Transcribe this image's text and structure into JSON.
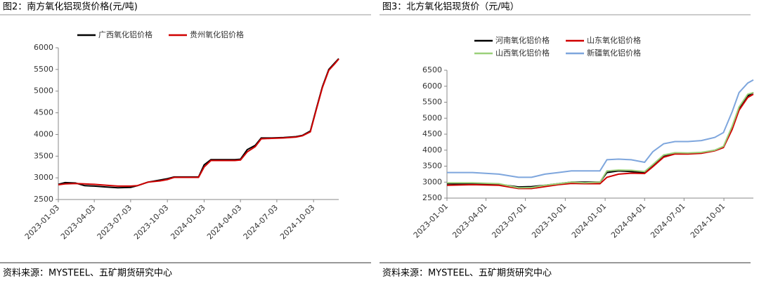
{
  "chart_data": [
    {
      "type": "line",
      "title": "图2：南方氧化铝现货价格(元/吨)",
      "source": "资料来源：MYSTEEL、五矿期货研究中心",
      "x": [
        "2023-01-03",
        "2023-01-20",
        "2023-02-15",
        "2023-03-10",
        "2023-04-03",
        "2023-05-01",
        "2023-06-01",
        "2023-07-03",
        "2023-07-20",
        "2023-08-15",
        "2023-09-15",
        "2023-10-03",
        "2023-10-20",
        "2023-11-15",
        "2023-12-20",
        "2024-01-03",
        "2024-01-20",
        "2024-02-20",
        "2024-03-20",
        "2024-04-03",
        "2024-04-20",
        "2024-05-10",
        "2024-05-25",
        "2024-06-20",
        "2024-07-20",
        "2024-08-20",
        "2024-09-05",
        "2024-09-25",
        "2024-10-10",
        "2024-10-25",
        "2024-11-10",
        "2024-11-25",
        "2024-12-05"
      ],
      "series": [
        {
          "name": "广西氧化铝价格",
          "color": "#000000",
          "values": [
            2850,
            2890,
            2880,
            2820,
            2810,
            2790,
            2770,
            2780,
            2820,
            2900,
            2950,
            2980,
            3020,
            3020,
            3020,
            3300,
            3420,
            3420,
            3420,
            3430,
            3650,
            3750,
            3920,
            3920,
            3930,
            3950,
            3980,
            4080,
            4600,
            5100,
            5500,
            5650,
            5750
          ]
        },
        {
          "name": "贵州氧化铝价格",
          "color": "#d00000",
          "values": [
            2840,
            2860,
            2870,
            2860,
            2850,
            2830,
            2810,
            2810,
            2820,
            2900,
            2930,
            2960,
            3010,
            3010,
            3010,
            3250,
            3400,
            3400,
            3400,
            3410,
            3600,
            3720,
            3900,
            3910,
            3920,
            3940,
            3970,
            4060,
            4580,
            5080,
            5480,
            5630,
            5740
          ]
        }
      ],
      "xlim": [
        "2023-01-03",
        "2024-12-05"
      ],
      "xticks": [
        "2023-01-03",
        "2023-04-03",
        "2023-07-03",
        "2023-10-03",
        "2024-01-03",
        "2024-04-03",
        "2024-07-03",
        "2024-10-03"
      ],
      "ylim": [
        2500,
        6000
      ],
      "yticks": [
        2500,
        3000,
        3500,
        4000,
        4500,
        5000,
        5500,
        6000
      ],
      "legend": "top"
    },
    {
      "type": "line",
      "title": "图3：北方氧化铝现货价（元/吨）",
      "source": "资料来源：MYSTEEL、五矿期货研究中心",
      "x": [
        "2023-01-01",
        "2023-03-01",
        "2023-05-01",
        "2023-06-15",
        "2023-07-15",
        "2023-08-15",
        "2023-09-15",
        "2023-10-15",
        "2023-11-15",
        "2023-12-20",
        "2024-01-05",
        "2024-02-01",
        "2024-03-01",
        "2024-04-01",
        "2024-04-20",
        "2024-05-15",
        "2024-06-10",
        "2024-07-10",
        "2024-08-10",
        "2024-09-10",
        "2024-09-30",
        "2024-10-20",
        "2024-11-05",
        "2024-11-25",
        "2024-12-08"
      ],
      "series": [
        {
          "name": "河南氧化铝价格",
          "color": "#000000",
          "values": [
            2950,
            2950,
            2930,
            2850,
            2860,
            2900,
            2950,
            3000,
            3000,
            3000,
            3300,
            3350,
            3330,
            3300,
            3500,
            3800,
            3900,
            3900,
            3920,
            4000,
            4100,
            4700,
            5300,
            5700,
            5800
          ]
        },
        {
          "name": "山东氧化铝价格",
          "color": "#d00000",
          "values": [
            2900,
            2920,
            2900,
            2800,
            2800,
            2860,
            2920,
            2960,
            2950,
            2950,
            3150,
            3250,
            3280,
            3270,
            3480,
            3780,
            3880,
            3880,
            3900,
            3980,
            4080,
            4650,
            5250,
            5650,
            5750
          ]
        },
        {
          "name": "山西氧化铝价格",
          "color": "#9bd07a",
          "values": [
            2980,
            2980,
            2950,
            2820,
            2830,
            2900,
            2950,
            3000,
            2980,
            3000,
            3350,
            3380,
            3370,
            3330,
            3550,
            3850,
            3920,
            3910,
            3930,
            4000,
            4120,
            4750,
            5350,
            5750,
            5800
          ]
        },
        {
          "name": "新疆氧化铝价格",
          "color": "#7ea6dd",
          "values": [
            3300,
            3300,
            3250,
            3150,
            3150,
            3250,
            3300,
            3350,
            3350,
            3350,
            3700,
            3720,
            3700,
            3620,
            3950,
            4200,
            4270,
            4270,
            4300,
            4400,
            4550,
            5200,
            5800,
            6100,
            6200
          ]
        }
      ],
      "xlim": [
        "2023-01-01",
        "2024-12-08"
      ],
      "xticks": [
        "2023-01-01",
        "2023-04-01",
        "2023-07-01",
        "2023-10-01",
        "2024-01-01",
        "2024-04-01",
        "2024-07-01",
        "2024-10-01"
      ],
      "ylim": [
        2500,
        6500
      ],
      "yticks": [
        2500,
        3000,
        3500,
        4000,
        4500,
        5000,
        5500,
        6000,
        6500
      ],
      "legend": "top"
    }
  ]
}
